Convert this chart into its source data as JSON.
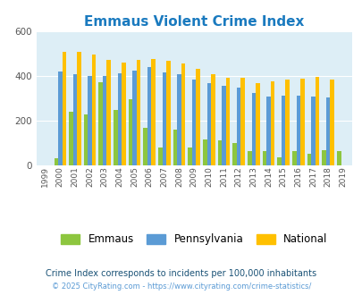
{
  "title": "Emmaus Violent Crime Index",
  "title_color": "#1a7abf",
  "years": [
    1999,
    2000,
    2001,
    2002,
    2003,
    2004,
    2005,
    2006,
    2007,
    2008,
    2009,
    2010,
    2011,
    2012,
    2013,
    2014,
    2015,
    2016,
    2017,
    2018,
    2019
  ],
  "emmaus": [
    null,
    30,
    240,
    225,
    370,
    248,
    295,
    168,
    80,
    160,
    80,
    115,
    110,
    100,
    63,
    63,
    35,
    63,
    50,
    68,
    63
  ],
  "pennsylvania": [
    null,
    420,
    407,
    400,
    397,
    410,
    422,
    438,
    415,
    407,
    383,
    367,
    355,
    348,
    323,
    305,
    312,
    312,
    307,
    303,
    null
  ],
  "national": [
    null,
    507,
    507,
    495,
    470,
    460,
    469,
    473,
    466,
    455,
    430,
    405,
    390,
    390,
    368,
    374,
    383,
    387,
    395,
    383,
    null
  ],
  "emmaus_color": "#8dc63f",
  "pennsylvania_color": "#5b9bd5",
  "national_color": "#ffc000",
  "bg_color": "#ddeef6",
  "ylim": [
    0,
    600
  ],
  "yticks": [
    0,
    200,
    400,
    600
  ],
  "subtitle": "Crime Index corresponds to incidents per 100,000 inhabitants",
  "subtitle_color": "#1a5276",
  "copyright": "© 2025 CityRating.com - https://www.cityrating.com/crime-statistics/",
  "copyright_color": "#5b9bd5",
  "legend_labels": [
    "Emmaus",
    "Pennsylvania",
    "National"
  ],
  "bar_width": 0.27
}
